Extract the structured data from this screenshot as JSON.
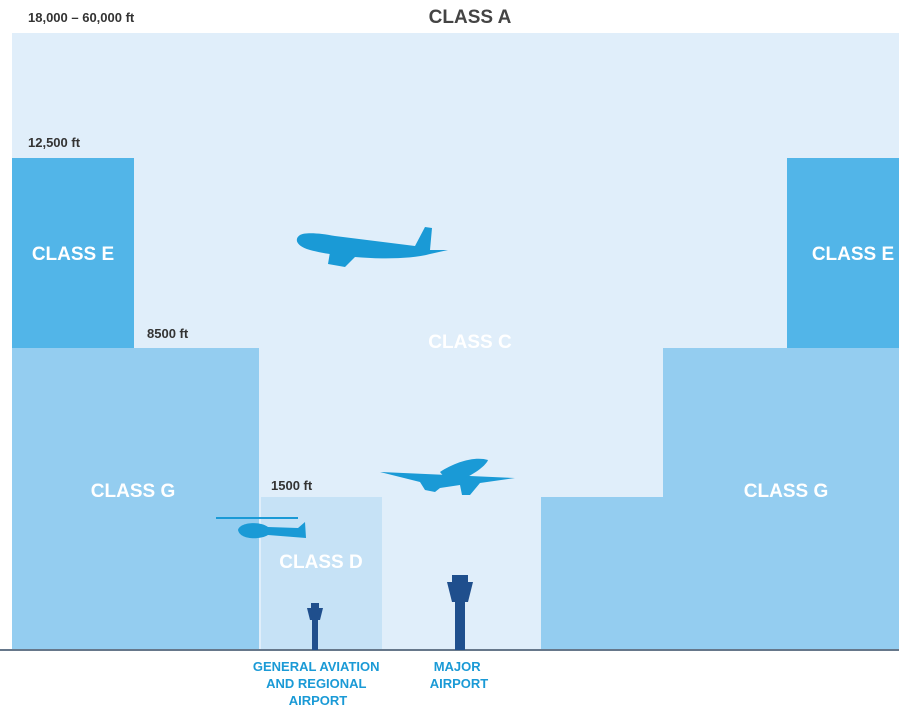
{
  "altitudes": {
    "top": "18,000 – 60,000 ft",
    "class_e": "12,500 ft",
    "class_g": "8500 ft",
    "class_d": "1500 ft"
  },
  "classes": {
    "a": "CLASS A",
    "e_left": "CLASS E",
    "e_right": "CLASS E",
    "c": "CLASS C",
    "g_left": "CLASS G",
    "g_right": "CLASS G",
    "d": "CLASS D"
  },
  "airports": [
    {
      "lines": [
        "GENERAL AVIATION",
        "AND REGIONAL",
        "AIRPORT"
      ]
    },
    {
      "lines": [
        "MAJOR",
        "AIRPORT"
      ]
    }
  ]
}
